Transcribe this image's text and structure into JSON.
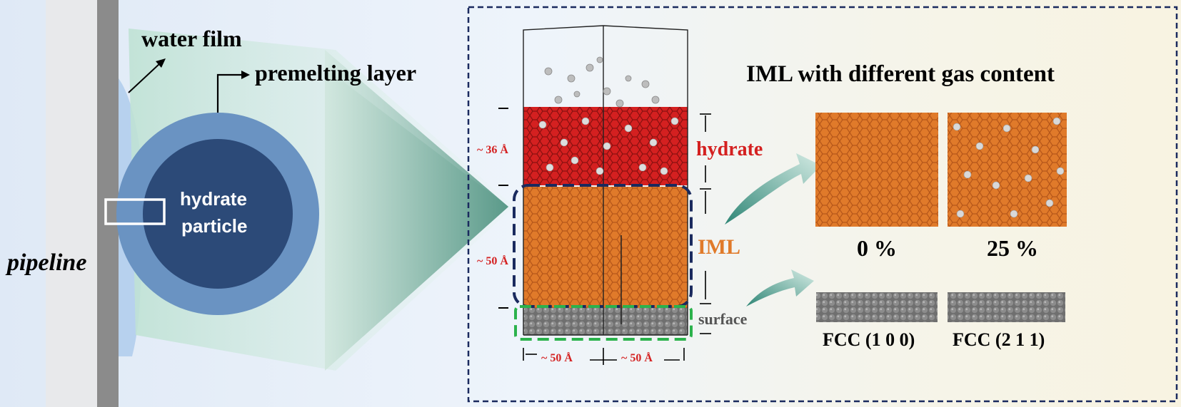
{
  "left": {
    "pipeline_label": "pipeline",
    "water_film_label": "water film",
    "premelting_label": "premelting layer",
    "particle_label_line1": "hydrate",
    "particle_label_line2": "particle"
  },
  "simulation": {
    "hydrate_thickness": "~ 36 Å",
    "iml_thickness": "~ 50 Å",
    "width_left": "~ 50 Å",
    "width_right": "~ 50 Å",
    "hydrate_label": "hydrate",
    "iml_label": "IML",
    "surface_label": "surface"
  },
  "results": {
    "title": "IML with different gas content",
    "gas_0": "0 %",
    "gas_25": "25 %",
    "fcc_100": "FCC (1 0 0)",
    "fcc_211": "FCC (2 1 1)"
  },
  "colors": {
    "hydrate": "#d42020",
    "iml": "#e07a2a",
    "surface": "#555555",
    "dash_blue": "#1a2a5e",
    "dash_green": "#2bb24c",
    "particle_core": "#2c4a78",
    "particle_ring": "#6a93c2",
    "arrow_teal": "#5aa391"
  }
}
